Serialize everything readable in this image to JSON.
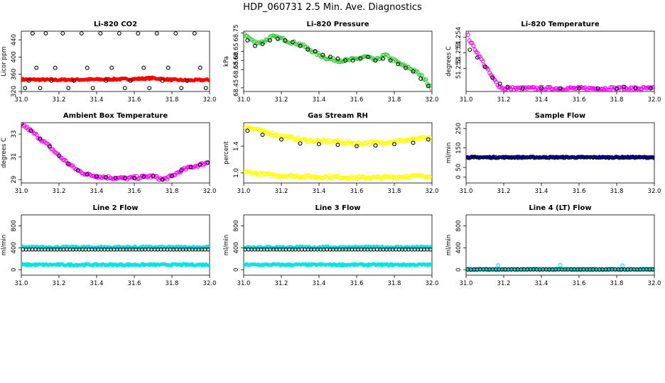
{
  "page_title": "HDP_060731  2.5 Min. Ave. Diagnostics",
  "chart_data": [
    {
      "id": "co2",
      "type": "scatter",
      "title": "Li-820 CO2",
      "ylabel": "Licor ppm",
      "xlim": [
        31.0,
        32.0
      ],
      "ylim": [
        320,
        460
      ],
      "xticks": [
        31.0,
        31.2,
        31.4,
        31.6,
        31.8,
        32.0
      ],
      "yticks": [
        320,
        360,
        400,
        440
      ],
      "xtick_labels": [
        "31.0",
        "31.2",
        "31.4",
        "31.6",
        "31.8",
        "32.0"
      ],
      "ytick_labels": [
        "320",
        "360",
        "400",
        "440"
      ],
      "series": [
        {
          "name": "co2-fine",
          "color": "#ff0000",
          "marker": "dot",
          "base": 347,
          "x": [
            31.0,
            31.2,
            31.4,
            31.6,
            31.7,
            31.8,
            31.9,
            32.0
          ],
          "y": [
            348,
            347,
            348,
            349,
            351,
            347,
            346,
            347
          ]
        },
        {
          "name": "co2-avg",
          "color": "#000000",
          "marker": "circle",
          "x": [
            31.02,
            31.04,
            31.06,
            31.08,
            31.1,
            31.13,
            31.16,
            31.18,
            31.22,
            31.25,
            31.28,
            31.32,
            31.35,
            31.38,
            31.42,
            31.45,
            31.48,
            31.52,
            31.55,
            31.58,
            31.62,
            31.65,
            31.68,
            31.72,
            31.75,
            31.78,
            31.82,
            31.85,
            31.88,
            31.92,
            31.95,
            31.98
          ],
          "y": [
            328,
            345,
            455,
            375,
            328,
            455,
            345,
            375,
            455,
            328,
            345,
            455,
            375,
            328,
            455,
            345,
            375,
            455,
            328,
            345,
            455,
            375,
            328,
            455,
            345,
            375,
            455,
            328,
            345,
            455,
            375,
            328
          ]
        }
      ]
    },
    {
      "id": "pressure",
      "type": "scatter",
      "title": "Li-820 Pressure",
      "ylabel": "kPa",
      "xlim": [
        31.0,
        32.0
      ],
      "ylim": [
        68.43,
        68.76
      ],
      "xticks": [
        31.0,
        31.2,
        31.4,
        31.6,
        31.8,
        32.0
      ],
      "yticks": [
        68.45,
        68.55,
        68.6,
        68.65,
        68.75
      ],
      "xtick_labels": [
        "31.0",
        "31.2",
        "31.4",
        "31.6",
        "31.8",
        "32.0"
      ],
      "ytick_labels": [
        "68.45",
        "68.55",
        "68.60",
        "68.65",
        "68.75"
      ],
      "series": [
        {
          "name": "pressure-fine",
          "color": "#33cc33",
          "marker": "circle",
          "x": [
            31.0,
            31.03,
            31.06,
            31.1,
            31.15,
            31.2,
            31.25,
            31.3,
            31.35,
            31.4,
            31.45,
            31.5,
            31.55,
            31.6,
            31.65,
            31.7,
            31.75,
            31.8,
            31.85,
            31.9,
            31.95,
            32.0
          ],
          "y": [
            68.75,
            68.72,
            68.7,
            68.7,
            68.73,
            68.72,
            68.7,
            68.69,
            68.66,
            68.63,
            68.61,
            68.6,
            68.6,
            68.61,
            68.62,
            68.6,
            68.63,
            68.6,
            68.57,
            68.55,
            68.51,
            68.45
          ]
        },
        {
          "name": "pressure-avg",
          "color": "#000000",
          "marker": "circle",
          "x": [
            31.02,
            31.06,
            31.1,
            31.14,
            31.18,
            31.22,
            31.26,
            31.3,
            31.34,
            31.38,
            31.42,
            31.46,
            31.5,
            31.54,
            31.58,
            31.62,
            31.66,
            31.7,
            31.74,
            31.78,
            31.82,
            31.86,
            31.9,
            31.94,
            31.98
          ],
          "y": [
            68.71,
            68.68,
            68.69,
            68.71,
            68.72,
            68.71,
            68.7,
            68.68,
            68.66,
            68.65,
            68.63,
            68.62,
            68.61,
            68.6,
            68.6,
            68.61,
            68.62,
            68.6,
            68.61,
            68.6,
            68.58,
            68.56,
            68.54,
            68.5,
            68.46
          ]
        }
      ]
    },
    {
      "id": "temperature",
      "type": "scatter",
      "title": "Li-820 Temperature",
      "ylabel": "degrees C",
      "xlim": [
        31.0,
        32.0
      ],
      "ylim": [
        51.2505,
        51.2544
      ],
      "xticks": [
        31.0,
        31.2,
        31.4,
        31.6,
        31.8,
        32.0
      ],
      "yticks": [
        51.252,
        51.253,
        51.254
      ],
      "xtick_labels": [
        "31.0",
        "31.2",
        "31.4",
        "31.6",
        "31.8",
        "32.0"
      ],
      "ytick_labels": [
        "51.252",
        "51.253",
        "51.254"
      ],
      "series": [
        {
          "name": "temp-fine",
          "color": "#ff00ff",
          "marker": "circle",
          "x": [
            31.0,
            31.02,
            31.04,
            31.06,
            31.08,
            31.1,
            31.12,
            31.14,
            31.16,
            31.18,
            31.2,
            31.3,
            31.4,
            31.5,
            31.6,
            31.7,
            31.8,
            31.9,
            32.0
          ],
          "y": [
            51.2544,
            51.2538,
            51.2534,
            51.253,
            51.2526,
            51.2522,
            51.2518,
            51.2514,
            51.2511,
            51.2508,
            51.2507,
            51.2507,
            51.2507,
            51.2507,
            51.2507,
            51.2507,
            51.2507,
            51.2507,
            51.2507
          ]
        },
        {
          "name": "temp-avg",
          "color": "#000000",
          "marker": "circle",
          "x": [
            31.02,
            31.06,
            31.1,
            31.14,
            31.18,
            31.22,
            31.3,
            31.4,
            31.5,
            31.6,
            31.7,
            31.8,
            31.84,
            31.9,
            31.98
          ],
          "y": [
            51.2532,
            51.2527,
            51.2521,
            51.2514,
            51.251,
            51.2508,
            51.2507,
            51.2507,
            51.2507,
            51.2507,
            51.2507,
            51.2507,
            51.2508,
            51.2507,
            51.2507
          ]
        }
      ]
    },
    {
      "id": "ambient",
      "type": "scatter",
      "title": "Ambient Box Temperature",
      "ylabel": "degrees C",
      "xlim": [
        31.0,
        32.0
      ],
      "ylim": [
        28.7,
        34.0
      ],
      "xticks": [
        31.0,
        31.2,
        31.4,
        31.6,
        31.8,
        32.0
      ],
      "yticks": [
        29,
        31,
        33
      ],
      "xtick_labels": [
        "31.0",
        "31.2",
        "31.4",
        "31.6",
        "31.8",
        "32.0"
      ],
      "ytick_labels": [
        "29",
        "31",
        "33"
      ],
      "series": [
        {
          "name": "ambient-fine",
          "color": "#ff00ff",
          "marker": "circle",
          "x": [
            31.0,
            31.05,
            31.1,
            31.15,
            31.2,
            31.25,
            31.3,
            31.35,
            31.4,
            31.45,
            31.5,
            31.55,
            31.6,
            31.65,
            31.7,
            31.75,
            31.8,
            31.85,
            31.9,
            31.95,
            31.99
          ],
          "y": [
            33.9,
            33.3,
            32.6,
            31.9,
            31.1,
            30.4,
            29.8,
            29.45,
            29.3,
            29.2,
            29.15,
            29.1,
            29.15,
            29.25,
            29.3,
            29.0,
            29.3,
            29.8,
            30.1,
            30.3,
            30.5
          ]
        },
        {
          "name": "ambient-avg",
          "color": "#000000",
          "marker": "circle",
          "x": [
            31.0,
            31.05,
            31.1,
            31.15,
            31.2,
            31.25,
            31.3,
            31.35,
            31.4,
            31.45,
            31.5,
            31.55,
            31.6,
            31.65,
            31.7,
            31.75,
            31.8,
            31.85,
            31.9,
            31.95,
            31.99
          ],
          "y": [
            33.9,
            33.3,
            32.6,
            31.9,
            31.1,
            30.4,
            29.8,
            29.45,
            29.3,
            29.2,
            29.15,
            29.1,
            29.15,
            29.25,
            29.3,
            29.0,
            29.3,
            29.8,
            30.1,
            30.3,
            30.5
          ]
        }
      ]
    },
    {
      "id": "rh",
      "type": "scatter",
      "title": "Gas Stream RH",
      "ylabel": "percent",
      "xlim": [
        31.0,
        32.0
      ],
      "ylim": [
        0.85,
        1.75
      ],
      "xticks": [
        31.0,
        31.2,
        31.4,
        31.6,
        31.8,
        32.0
      ],
      "yticks": [
        1.0,
        1.4
      ],
      "xtick_labels": [
        "31.0",
        "31.2",
        "31.4",
        "31.6",
        "31.8",
        "32.0"
      ],
      "ytick_labels": [
        "1.0",
        "1.4"
      ],
      "series": [
        {
          "name": "rh-upper",
          "color": "#ffff00",
          "marker": "circle",
          "x": [
            31.0,
            31.1,
            31.2,
            31.3,
            31.4,
            31.5,
            31.6,
            31.7,
            31.8,
            31.9,
            32.0
          ],
          "y": [
            1.7,
            1.62,
            1.55,
            1.5,
            1.47,
            1.47,
            1.44,
            1.45,
            1.47,
            1.5,
            1.52
          ]
        },
        {
          "name": "rh-lower",
          "color": "#ffff00",
          "marker": "circle",
          "x": [
            31.0,
            31.1,
            31.2,
            31.3,
            31.4,
            31.5,
            31.6,
            31.7,
            31.8,
            31.9,
            32.0
          ],
          "y": [
            1.02,
            0.98,
            0.96,
            0.95,
            0.94,
            0.94,
            0.93,
            0.93,
            0.94,
            0.95,
            0.96
          ]
        },
        {
          "name": "rh-avg",
          "color": "#000000",
          "marker": "circle",
          "x": [
            31.02,
            31.1,
            31.2,
            31.3,
            31.4,
            31.5,
            31.6,
            31.7,
            31.8,
            31.9,
            31.98
          ],
          "y": [
            1.63,
            1.57,
            1.5,
            1.44,
            1.43,
            1.42,
            1.4,
            1.41,
            1.43,
            1.45,
            1.5
          ]
        }
      ]
    },
    {
      "id": "sample",
      "type": "scatter",
      "title": "Sample Flow",
      "ylabel": "ml/min",
      "xlim": [
        31.0,
        32.0
      ],
      "ylim": [
        -30,
        280
      ],
      "xticks": [
        31.0,
        31.2,
        31.4,
        31.6,
        31.8,
        32.0
      ],
      "yticks": [
        0,
        50,
        150,
        250
      ],
      "xtick_labels": [
        "31.0",
        "31.2",
        "31.4",
        "31.6",
        "31.8",
        "32.0"
      ],
      "ytick_labels": [
        "0",
        "50",
        "150",
        "250"
      ],
      "series": [
        {
          "name": "sample-fine",
          "color": "#0000cc",
          "marker": "dot",
          "base": 102,
          "x": [
            31.0,
            32.0
          ],
          "y": [
            102,
            102
          ]
        },
        {
          "name": "sample-avg",
          "color": "#000000",
          "marker": "circle",
          "base": 102,
          "x": [
            31.0,
            32.0
          ],
          "y": [
            102,
            102
          ]
        }
      ]
    },
    {
      "id": "line2",
      "type": "scatter",
      "title": "Line 2 Flow",
      "ylabel": "ml/min",
      "xlim": [
        31.0,
        32.0
      ],
      "ylim": [
        -100,
        1000
      ],
      "xticks": [
        31.0,
        31.2,
        31.4,
        31.6,
        31.8,
        32.0
      ],
      "yticks": [
        0,
        400,
        800
      ],
      "xtick_labels": [
        "31.0",
        "31.2",
        "31.4",
        "31.6",
        "31.8",
        "32.0"
      ],
      "ytick_labels": [
        "0",
        "400",
        "800"
      ],
      "series": [
        {
          "name": "line2-upper",
          "color": "#00e5e5",
          "marker": "dot",
          "base": 410,
          "x": [
            31.0,
            32.0
          ],
          "y": [
            410,
            410
          ]
        },
        {
          "name": "line2-lower",
          "color": "#00e5e5",
          "marker": "dot",
          "base": 90,
          "x": [
            31.0,
            32.0
          ],
          "y": [
            90,
            90
          ]
        },
        {
          "name": "line2-avg",
          "color": "#000000",
          "marker": "circle",
          "base": 370,
          "x": [
            31.0,
            32.0
          ],
          "y": [
            370,
            370
          ]
        }
      ]
    },
    {
      "id": "line3",
      "type": "scatter",
      "title": "Line 3 Flow",
      "ylabel": "ml/min",
      "xlim": [
        31.0,
        32.0
      ],
      "ylim": [
        -100,
        1000
      ],
      "xticks": [
        31.0,
        31.2,
        31.4,
        31.6,
        31.8,
        32.0
      ],
      "yticks": [
        0,
        400,
        800
      ],
      "xtick_labels": [
        "31.0",
        "31.2",
        "31.4",
        "31.6",
        "31.8",
        "32.0"
      ],
      "ytick_labels": [
        "0",
        "400",
        "800"
      ],
      "series": [
        {
          "name": "line3-upper",
          "color": "#00e5e5",
          "marker": "dot",
          "base": 410,
          "x": [
            31.0,
            32.0
          ],
          "y": [
            410,
            410
          ]
        },
        {
          "name": "line3-lower",
          "color": "#00e5e5",
          "marker": "dot",
          "base": 90,
          "x": [
            31.0,
            32.0
          ],
          "y": [
            90,
            90
          ]
        },
        {
          "name": "line3-avg",
          "color": "#000000",
          "marker": "circle",
          "base": 370,
          "x": [
            31.0,
            32.0
          ],
          "y": [
            370,
            370
          ]
        }
      ]
    },
    {
      "id": "line4",
      "type": "scatter",
      "title": "Line 4 (LT) Flow",
      "ylabel": "ml/min",
      "xlim": [
        31.0,
        32.0
      ],
      "ylim": [
        -100,
        1000
      ],
      "xticks": [
        31.0,
        31.2,
        31.4,
        31.6,
        31.8,
        32.0
      ],
      "yticks": [
        0,
        400,
        800
      ],
      "xtick_labels": [
        "31.0",
        "31.2",
        "31.4",
        "31.6",
        "31.8",
        "32.0"
      ],
      "ytick_labels": [
        "0",
        "400",
        "800"
      ],
      "series": [
        {
          "name": "line4-fine",
          "color": "#00e5e5",
          "marker": "dot",
          "base": 5,
          "spikes": [
            {
              "x": 31.17,
              "y": 80
            },
            {
              "x": 31.5,
              "y": 85
            },
            {
              "x": 31.83,
              "y": 75
            }
          ],
          "x": [
            31.0,
            32.0
          ],
          "y": [
            5,
            5
          ]
        },
        {
          "name": "line4-avg",
          "color": "#000000",
          "marker": "circle",
          "base": 5,
          "x": [
            31.0,
            32.0
          ],
          "y": [
            5,
            5
          ]
        }
      ]
    }
  ]
}
